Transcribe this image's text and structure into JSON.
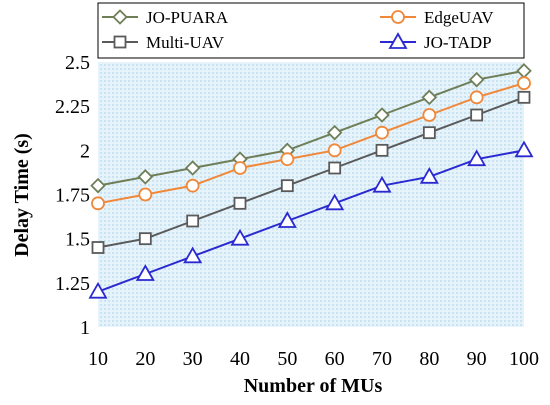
{
  "chart_data": {
    "type": "line",
    "title": "",
    "xlabel": "Number of MUs",
    "ylabel": "Delay Time (s)",
    "x": [
      10,
      20,
      30,
      40,
      50,
      60,
      70,
      80,
      90,
      100
    ],
    "xlim": [
      10,
      100
    ],
    "ylim": [
      1,
      2.5
    ],
    "yticks": [
      "1",
      "1.25",
      "1.5",
      "1.75",
      "2",
      "2.25",
      "2.5"
    ],
    "ytick_values": [
      1,
      1.25,
      1.5,
      1.75,
      2,
      2.25,
      2.5
    ],
    "legend_placement": "top",
    "background": "light-blue dotted",
    "series": [
      {
        "name": "JO-PUARA",
        "marker": "diamond",
        "color": "#6e7f58",
        "values": [
          1.8,
          1.85,
          1.9,
          1.95,
          2.0,
          2.1,
          2.2,
          2.3,
          2.4,
          2.45
        ]
      },
      {
        "name": "EdgeUAV",
        "marker": "circle",
        "color": "#f0883a",
        "values": [
          1.7,
          1.75,
          1.8,
          1.9,
          1.95,
          2.0,
          2.1,
          2.2,
          2.3,
          2.38
        ]
      },
      {
        "name": "Multi-UAV",
        "marker": "square",
        "color": "#5a5a5a",
        "values": [
          1.45,
          1.5,
          1.6,
          1.7,
          1.8,
          1.9,
          2.0,
          2.1,
          2.2,
          2.3
        ]
      },
      {
        "name": "JO-TADP",
        "marker": "triangle",
        "color": "#2a2ad0",
        "values": [
          1.2,
          1.3,
          1.4,
          1.5,
          1.6,
          1.7,
          1.8,
          1.85,
          1.95,
          2.0
        ]
      }
    ]
  }
}
